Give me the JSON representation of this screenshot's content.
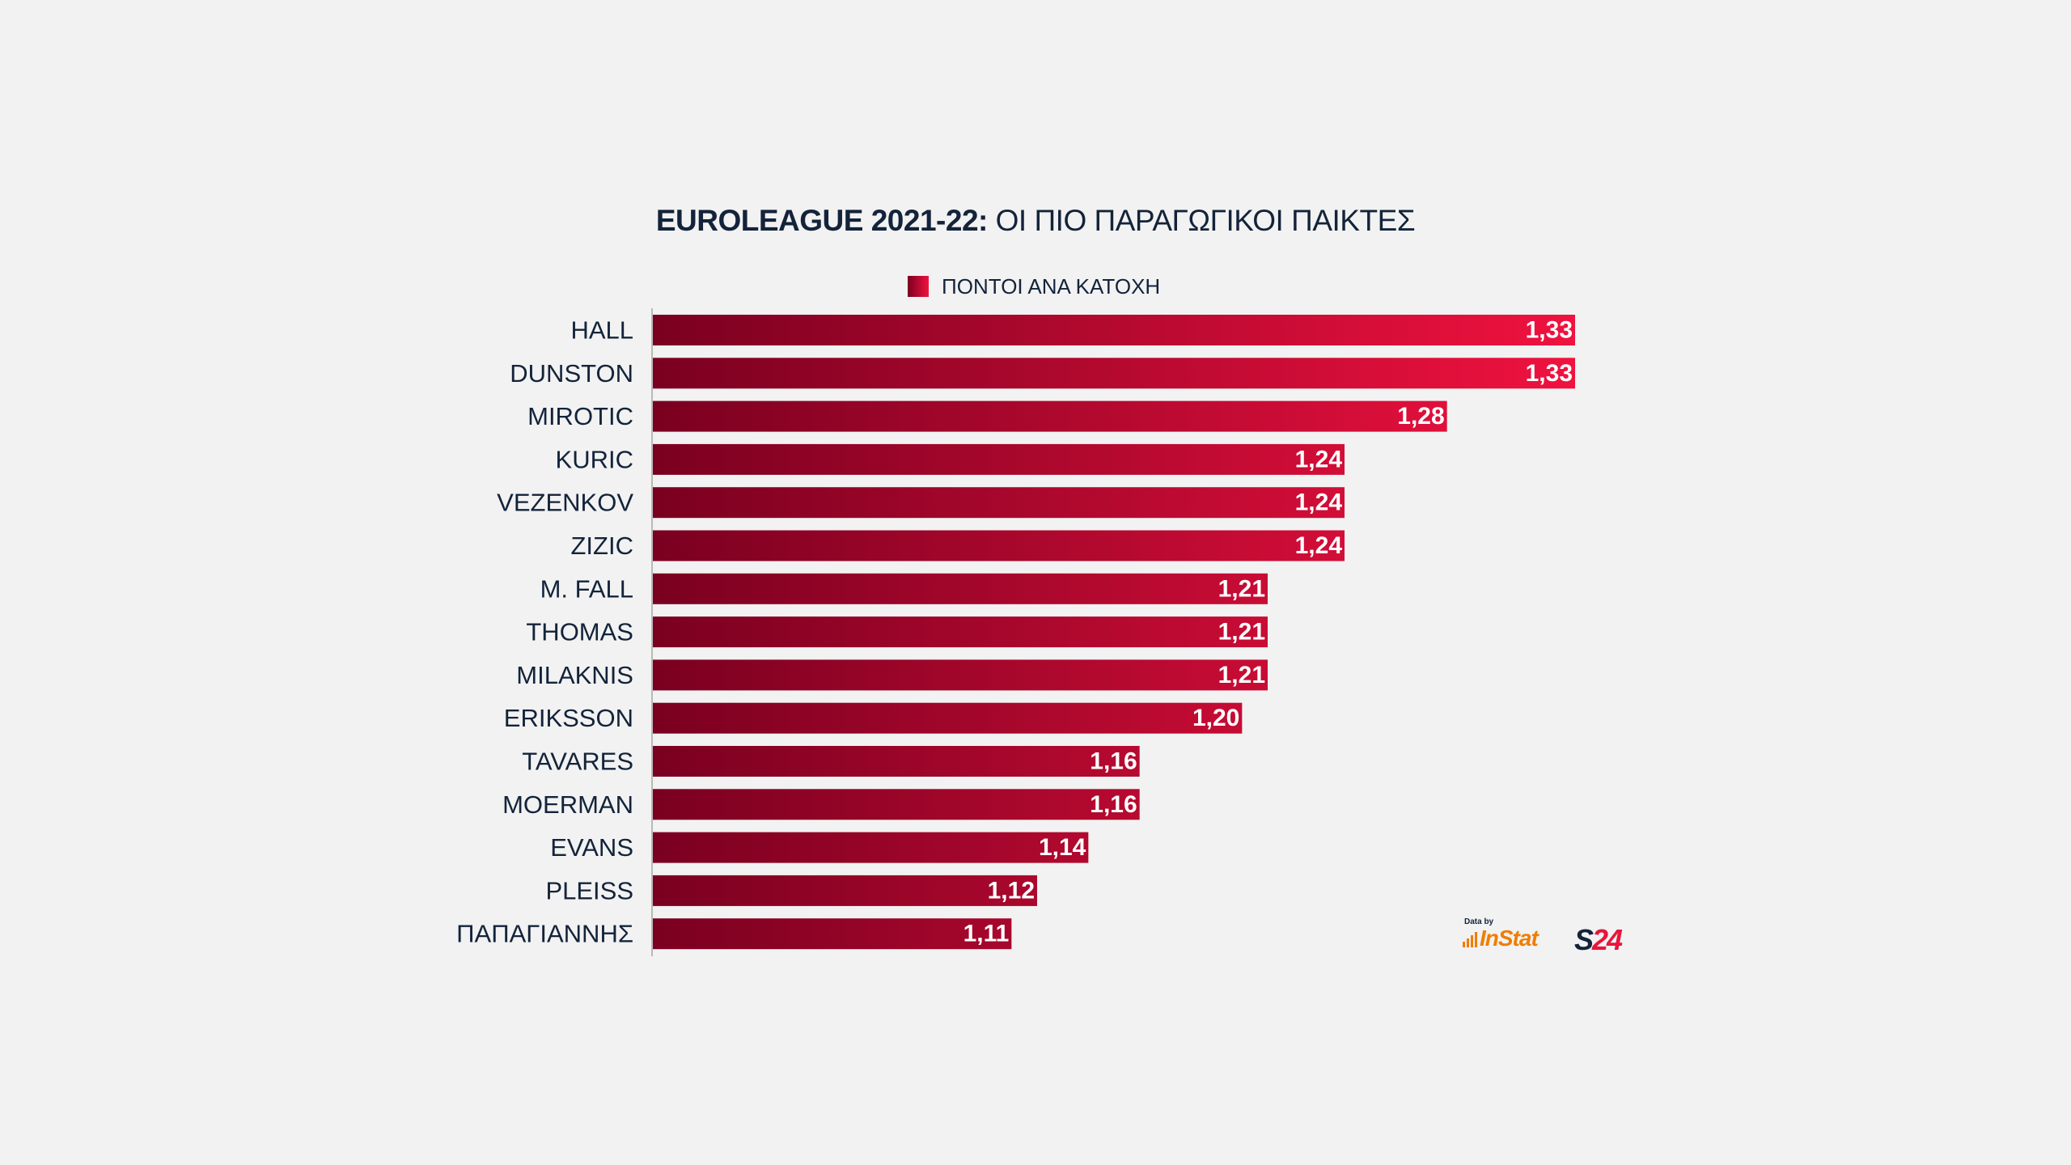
{
  "title": {
    "bold": "EUROLEAGUE 2021-22:",
    "light": "ΟΙ ΠΙΟ ΠΑΡΑΓΩΓΙΚΟΙ ΠΑΙΚΤΕΣ"
  },
  "legend": {
    "label": "ΠΟΝΤΟΙ ΑΝΑ ΚΑΤΟΧΗ"
  },
  "credits": {
    "data_by": "Data by",
    "instat": "InStat",
    "s24_letter": "S",
    "s24_number": "24"
  },
  "colors": {
    "bar_start": "#7a0020",
    "bar_end": "#f0123f",
    "text": "#13233a",
    "background": "#f2f2f2",
    "instat": "#f07d00",
    "s24_red": "#e8153c"
  },
  "chart_data": {
    "type": "bar",
    "orientation": "horizontal",
    "title": "EUROLEAGUE 2021-22: ΟΙ ΠΙΟ ΠΑΡΑΓΩΓΙΚΟΙ ΠΑΙΚΤΕΣ",
    "legend": "top-center",
    "grid": false,
    "series": [
      {
        "name": "ΠΟΝΤΟΙ ΑΝΑ ΚΑΤΟΧΗ",
        "values": [
          1.33,
          1.33,
          1.28,
          1.24,
          1.24,
          1.24,
          1.21,
          1.21,
          1.21,
          1.2,
          1.16,
          1.16,
          1.14,
          1.12,
          1.11
        ]
      }
    ],
    "categories": [
      "HALL",
      "DUNSTON",
      "MIROTIC",
      "KURIC",
      "VEZENKOV",
      "ZIZIC",
      "M. FALL",
      "THOMAS",
      "MILAKNIS",
      "ERIKSSON",
      "TAVARES",
      "MOERMAN",
      "EVANS",
      "PLEISS",
      "ΠΑΠΑΓΙΑΝΝΗΣ"
    ],
    "value_labels": [
      "1,33",
      "1,33",
      "1,28",
      "1,24",
      "1,24",
      "1,24",
      "1,21",
      "1,21",
      "1,21",
      "1,20",
      "1,16",
      "1,16",
      "1,14",
      "1,12",
      "1,11"
    ],
    "xlim": [
      0.97,
      1.33
    ]
  }
}
